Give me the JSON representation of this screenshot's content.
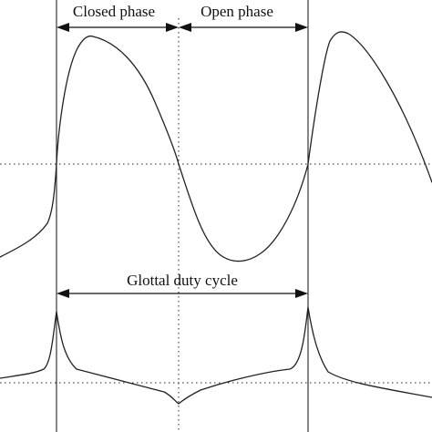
{
  "labels": {
    "closed_phase": "Closed phase",
    "open_phase": "Open phase",
    "duty_cycle": "Glottal duty cycle"
  },
  "colors": {
    "ink": "#222222",
    "background": "#ffffff"
  }
}
